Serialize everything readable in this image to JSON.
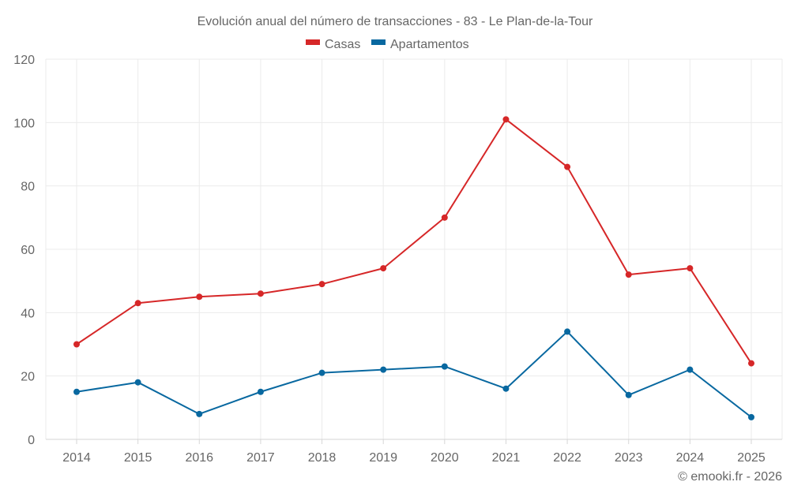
{
  "chart_data": {
    "type": "line",
    "title": "Evolución anual del número de transacciones - 83 - Le Plan-de-la-Tour",
    "xlabel": "",
    "ylabel": "",
    "x": [
      "2014",
      "2015",
      "2016",
      "2017",
      "2018",
      "2019",
      "2020",
      "2021",
      "2022",
      "2023",
      "2024",
      "2025"
    ],
    "series": [
      {
        "name": "Casas",
        "color": "#d62728",
        "values": [
          30,
          43,
          45,
          46,
          49,
          54,
          70,
          101,
          86,
          52,
          54,
          24
        ]
      },
      {
        "name": "Apartamentos",
        "color": "#0868a0",
        "values": [
          15,
          18,
          8,
          15,
          21,
          22,
          23,
          16,
          34,
          14,
          22,
          7
        ]
      }
    ],
    "ylim": [
      0,
      120
    ],
    "yticks": [
      "0",
      "20",
      "40",
      "60",
      "80",
      "100",
      "120"
    ],
    "grid": true,
    "legend_position": "top-center",
    "credit": "© emooki.fr - 2026"
  }
}
